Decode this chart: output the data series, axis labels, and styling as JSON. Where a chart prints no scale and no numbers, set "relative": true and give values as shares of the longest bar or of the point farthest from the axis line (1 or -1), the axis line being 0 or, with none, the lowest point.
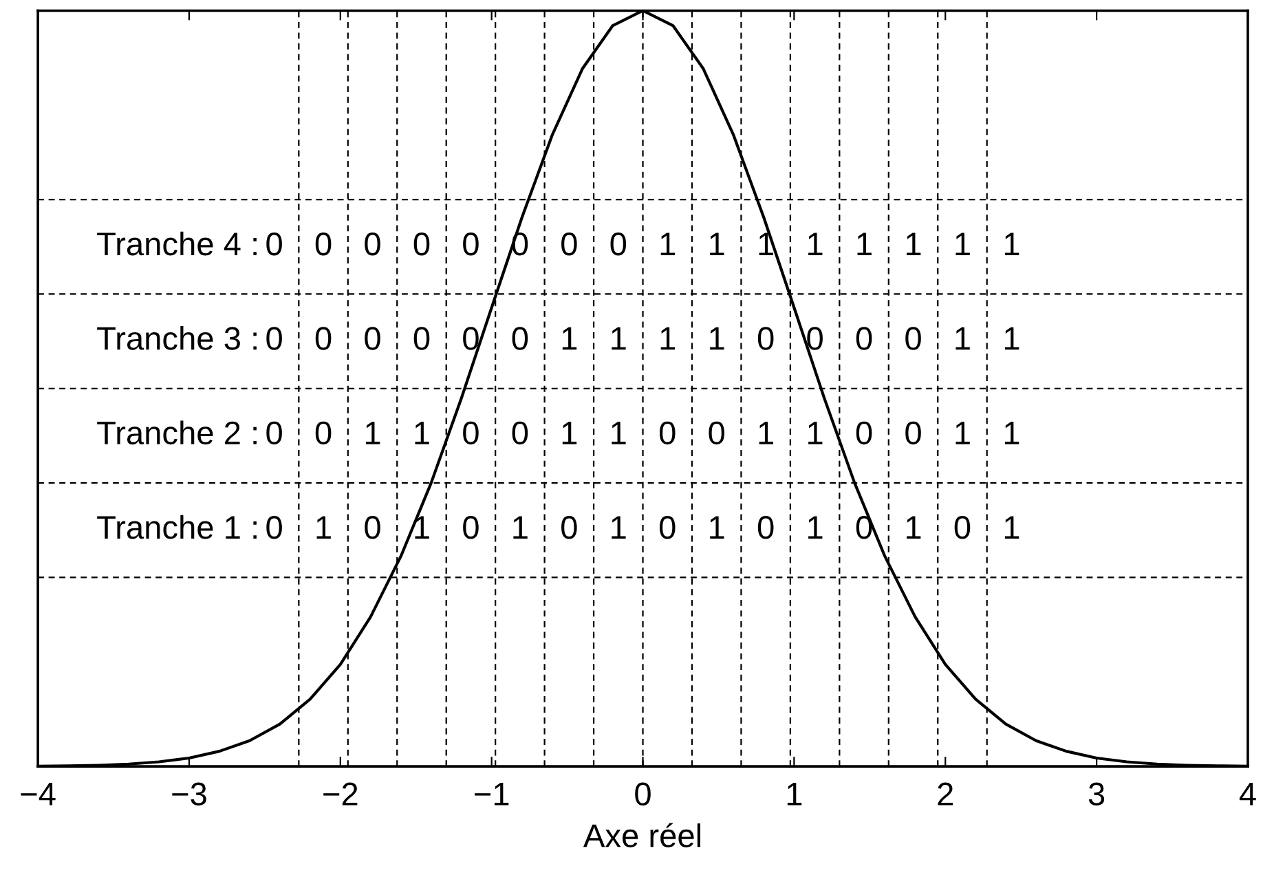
{
  "chart_data": {
    "type": "line",
    "relative": true,
    "xlabel": "Axe réel",
    "x": [
      -4,
      -3.8,
      -3.6,
      -3.4,
      -3.2,
      -3,
      -2.8,
      -2.6,
      -2.4,
      -2.2,
      -2,
      -1.8,
      -1.6,
      -1.4,
      -1.2,
      -1,
      -0.8,
      -0.6,
      -0.4,
      -0.2,
      0,
      0.2,
      0.4,
      0.6,
      0.8,
      1,
      1.2,
      1.4,
      1.6,
      1.8,
      2,
      2.2,
      2.4,
      2.6,
      2.8,
      3,
      3.2,
      3.4,
      3.6,
      3.8,
      4
    ],
    "series": [
      {
        "color": "#000000",
        "values": [
          0.0003,
          0.0007,
          0.0015,
          0.0031,
          0.006,
          0.011,
          0.02,
          0.034,
          0.056,
          0.089,
          0.135,
          0.198,
          0.278,
          0.375,
          0.487,
          0.607,
          0.726,
          0.835,
          0.923,
          0.98,
          1,
          0.98,
          0.923,
          0.835,
          0.726,
          0.607,
          0.487,
          0.375,
          0.278,
          0.198,
          0.135,
          0.089,
          0.056,
          0.034,
          0.02,
          0.011,
          0.006,
          0.0031,
          0.0015,
          0.0007,
          0.0003
        ]
      }
    ],
    "xlim": [
      -4,
      4
    ],
    "xticks": [
      {
        "value": -4,
        "label": "−4"
      },
      {
        "value": -3,
        "label": "−3"
      },
      {
        "value": -2,
        "label": "−2"
      },
      {
        "value": -1,
        "label": "−1"
      },
      0,
      1,
      2,
      3,
      4
    ],
    "tick_labels": "x",
    "grid": false,
    "marker": "none",
    "line_style": "solid",
    "ref_lines": [
      {
        "axis": "x",
        "value": -2.275,
        "color": "#000000",
        "line_style": "dashed"
      },
      {
        "axis": "x",
        "value": -1.95,
        "color": "#000000",
        "line_style": "dashed"
      },
      {
        "axis": "x",
        "value": -1.625,
        "color": "#000000",
        "line_style": "dashed"
      },
      {
        "axis": "x",
        "value": -1.3,
        "color": "#000000",
        "line_style": "dashed"
      },
      {
        "axis": "x",
        "value": -0.975,
        "color": "#000000",
        "line_style": "dashed"
      },
      {
        "axis": "x",
        "value": -0.65,
        "color": "#000000",
        "line_style": "dashed"
      },
      {
        "axis": "x",
        "value": -0.325,
        "color": "#000000",
        "line_style": "dashed"
      },
      {
        "axis": "x",
        "value": 0,
        "color": "#000000",
        "line_style": "dashed"
      },
      {
        "axis": "x",
        "value": 0.325,
        "color": "#000000",
        "line_style": "dashed"
      },
      {
        "axis": "x",
        "value": 0.65,
        "color": "#000000",
        "line_style": "dashed"
      },
      {
        "axis": "x",
        "value": 0.975,
        "color": "#000000",
        "line_style": "dashed"
      },
      {
        "axis": "x",
        "value": 1.3,
        "color": "#000000",
        "line_style": "dashed"
      },
      {
        "axis": "x",
        "value": 1.625,
        "color": "#000000",
        "line_style": "dashed"
      },
      {
        "axis": "x",
        "value": 1.95,
        "color": "#000000",
        "line_style": "dashed"
      },
      {
        "axis": "x",
        "value": 2.275,
        "color": "#000000",
        "line_style": "dashed"
      },
      {
        "axis": "y",
        "value": 0.75,
        "color": "#000000",
        "line_style": "dashed"
      },
      {
        "axis": "y",
        "value": 0.625,
        "color": "#000000",
        "line_style": "dashed"
      },
      {
        "axis": "y",
        "value": 0.5,
        "color": "#000000",
        "line_style": "dashed"
      },
      {
        "axis": "y",
        "value": 0.375,
        "color": "#000000",
        "line_style": "dashed"
      },
      {
        "axis": "y",
        "value": 0.25,
        "color": "#000000",
        "line_style": "dashed"
      }
    ],
    "annotations": [
      "Tranche 4 : 0 0 0 0 0 0 0 0 1 1 1 1 1 1 1 1",
      "Tranche 3 : 0 0 0 0 0 0 1 1 1 1 0 0 0 0 1 1",
      "Tranche 2 : 0 0 1 1 0 0 1 1 0 0 1 1 0 0 1 1",
      "Tranche 1 : 0 1 0 1 0 1 0 1 0 1 0 1 0 1 0 1"
    ]
  }
}
